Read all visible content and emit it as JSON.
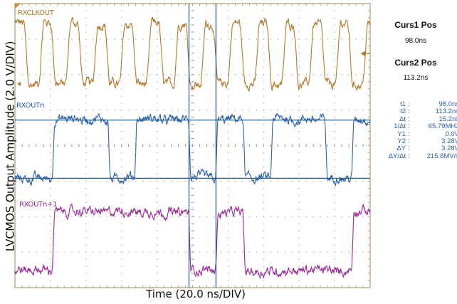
{
  "chart_data": {
    "type": "line",
    "xlabel": "Time (20.0 ns/DIV)",
    "ylabel": "LVCMOS Output Amplitude (2.0 V/DIV)",
    "x_units": "ns",
    "x_per_div": 20.0,
    "y_per_div": 2.0,
    "xlim": [
      0,
      200
    ],
    "grid": true,
    "series": [
      {
        "name": "RXCLKOUT",
        "color": "#b5782c",
        "low_v": 0.0,
        "high_v": 3.4,
        "offset_v": 3.48,
        "edge_ns": 3.2,
        "initial": 1,
        "transitions_ns": [
          6.4,
          14.8,
          21.6,
          30.0,
          36.8,
          45.2,
          52.0,
          60.4,
          67.2,
          75.6,
          82.4,
          90.8,
          97.6,
          106.0,
          112.8,
          121.2,
          128.0,
          136.4,
          143.2,
          151.6,
          158.4,
          166.8,
          173.6,
          182.0,
          188.8,
          197.2
        ]
      },
      {
        "name": "RXOUTn",
        "color": "#2b62b4",
        "low_v": 0.0,
        "high_v": 3.3,
        "offset_v": -1.84,
        "edge_ns": 1.6,
        "initial": 0,
        "transitions_ns": [
          21.6,
          53.0,
          68.0,
          98.4,
          113.6,
          129.0,
          144.6,
          175.2,
          190.2
        ]
      },
      {
        "name": "RXOUTn+1",
        "color": "#9a2a98",
        "low_v": 0.0,
        "high_v": 3.3,
        "offset_v": -7.04,
        "edge_ns": 1.6,
        "initial": 0,
        "transitions_ns": [
          21.6,
          98.4,
          113.6,
          129.0,
          190.2
        ]
      }
    ],
    "cursors": {
      "vertical_ns": [
        98.0,
        113.2
      ],
      "horizontal_on": "RXOUTn",
      "horizontal_v": [
        0.0,
        3.28
      ],
      "color": "#2b5f8a"
    }
  },
  "cursor_panel": {
    "curs1_title": "Curs1 Pos",
    "curs1_value": "98.0ns",
    "curs2_title": "Curs2 Pos",
    "curs2_value": "113.2ns"
  },
  "measurements": [
    {
      "label": "t1",
      "value": "98.0ns"
    },
    {
      "label": "t2",
      "value": "113.2ns"
    },
    {
      "label": "Δt",
      "value": "15.2ns"
    },
    {
      "label": "1/Δt",
      "value": "65.79MHz"
    },
    {
      "label": "Y1",
      "value": "0.0V"
    },
    {
      "label": "Y2",
      "value": "3.28V"
    },
    {
      "label": "ΔY",
      "value": "3.28V"
    },
    {
      "label": "ΔY/Δt",
      "value": "215.8MV/s"
    }
  ]
}
